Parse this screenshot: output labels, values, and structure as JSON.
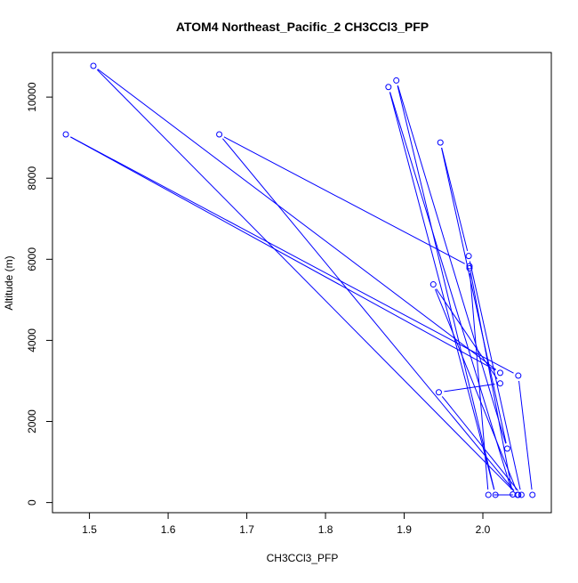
{
  "chart_data": {
    "type": "line",
    "title": "ATOM4 Northeast_Pacific_2 CH3CCl3_PFP",
    "xlabel": "CH3CCl3_PFP",
    "ylabel": "Altitude (m)",
    "xlim": [
      1.453,
      2.087
    ],
    "ylim": [
      -250,
      11100
    ],
    "xticks": [
      1.5,
      1.6,
      1.7,
      1.8,
      1.9,
      2.0
    ],
    "xtick_labels": [
      "1.5",
      "1.6",
      "1.7",
      "1.8",
      "1.9",
      "2.0"
    ],
    "yticks": [
      0,
      2000,
      4000,
      6000,
      8000,
      10000
    ],
    "ytick_labels": [
      "0",
      "2000",
      "4000",
      "6000",
      "8000",
      "10000"
    ],
    "series": [
      {
        "color": "#0000ff",
        "markers": "open-circle",
        "points": [
          [
            2.063,
            190
          ],
          [
            2.045,
            3130
          ],
          [
            1.47,
            9080
          ],
          [
            2.022,
            3200
          ],
          [
            1.505,
            10770
          ],
          [
            2.044,
            190
          ],
          [
            1.665,
            9080
          ],
          [
            1.983,
            5830
          ],
          [
            2.038,
            200
          ],
          [
            1.88,
            10250
          ],
          [
            2.016,
            190
          ],
          [
            1.89,
            10410
          ],
          [
            2.031,
            1330
          ],
          [
            1.946,
            8880
          ],
          [
            1.982,
            6080
          ],
          [
            2.049,
            190
          ],
          [
            1.944,
            2720
          ],
          [
            2.022,
            2940
          ],
          [
            1.937,
            5380
          ],
          [
            2.045,
            190
          ],
          [
            2.007,
            190
          ],
          [
            1.983,
            5780
          ]
        ]
      }
    ],
    "grid": false,
    "legend": "none"
  }
}
